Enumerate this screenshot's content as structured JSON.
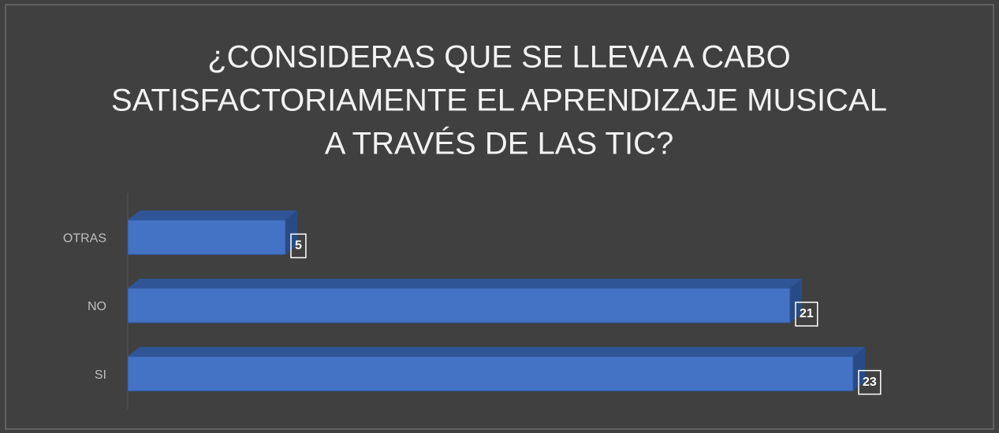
{
  "chart_data": {
    "type": "bar",
    "orientation": "horizontal",
    "title": [
      "¿CONSIDERAS QUE SE LLEVA A CABO",
      "SATISFACTORIAMENTE EL APRENDIZAJE MUSICAL",
      "A TRAVÉS DE LAS TIC?"
    ],
    "categories": [
      "OTRAS",
      "NO",
      "SI"
    ],
    "values": [
      5,
      21,
      23
    ],
    "color": "#4472c4",
    "xlim": [
      0,
      25
    ]
  }
}
